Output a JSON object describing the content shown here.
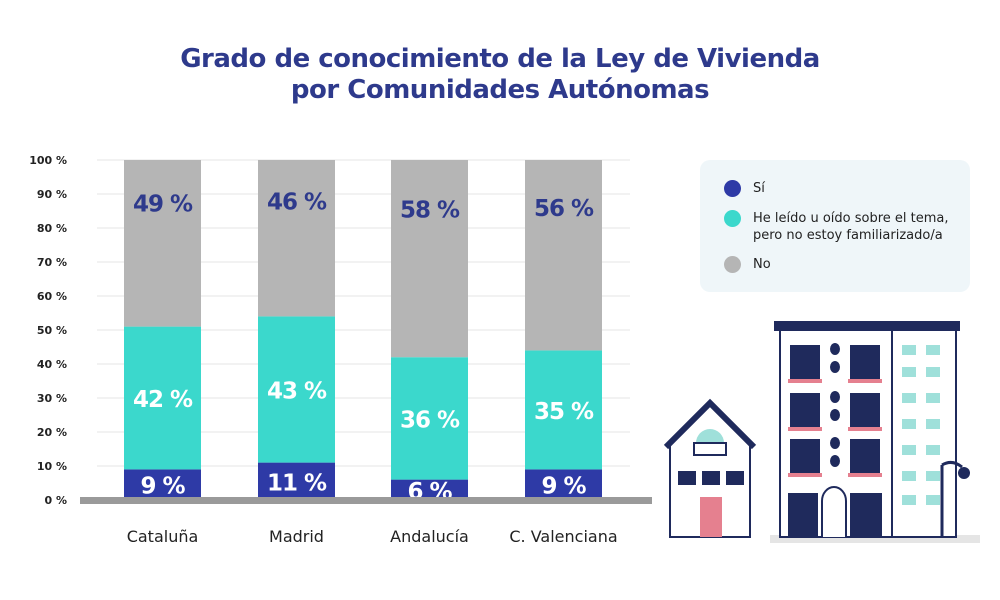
{
  "chart_data": {
    "type": "bar",
    "stacked": true,
    "title": "Grado de conocimiento de la Ley de Vivienda por Comunidades Autónomas",
    "title_lines": [
      "Grado de conocimiento de la Ley de Vivienda",
      "por Comunidades Autónomas"
    ],
    "categories": [
      "Cataluña",
      "Madrid",
      "Andalucía",
      "C. Valenciana"
    ],
    "series": [
      {
        "name": "Sí",
        "color": "#2e3aa6",
        "label_color": "#ffffff",
        "values": [
          9,
          11,
          6,
          9
        ]
      },
      {
        "name": "He leído u oído sobre el tema, pero no estoy familiarizado/a",
        "color": "#3bd8cc",
        "label_color": "#ffffff",
        "values": [
          42,
          43,
          36,
          35
        ]
      },
      {
        "name": "No",
        "color": "#b5b5b5",
        "label_color": "#2e3a8c",
        "values": [
          49,
          46,
          58,
          56
        ]
      }
    ],
    "legend_lines": [
      [
        "Sí"
      ],
      [
        "He leído u oído sobre el tema,",
        "pero no estoy familiarizado/a"
      ],
      [
        "No"
      ]
    ],
    "yticks": [
      "0 %",
      "10 %",
      "20 %",
      "30 %",
      "40 %",
      "50 %",
      "60 %",
      "70 %",
      "80 %",
      "90 %",
      "100 %"
    ],
    "ylim": [
      0,
      100
    ],
    "grid": true,
    "legend_position": "right"
  }
}
